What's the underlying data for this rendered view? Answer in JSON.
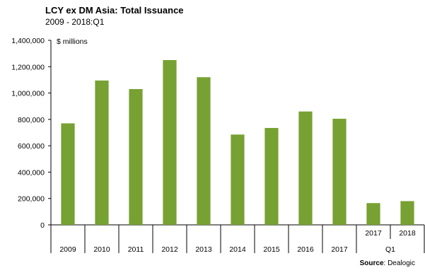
{
  "chart_data": {
    "type": "bar",
    "title": "LCY ex DM Asia:  Total Issuance",
    "subtitle": "2009 - 2018:Q1",
    "unit_label": "$ millions",
    "categories": [
      "2009",
      "2010",
      "2011",
      "2012",
      "2013",
      "2014",
      "2015",
      "2016",
      "2017",
      "2017",
      "2018"
    ],
    "group_labels": [
      {
        "label": "Q1",
        "categories": [
          "2017",
          "2018"
        ]
      }
    ],
    "values": [
      770000,
      1095000,
      1030000,
      1250000,
      1120000,
      685000,
      735000,
      860000,
      805000,
      165000,
      180000
    ],
    "ylim": [
      0,
      1400000
    ],
    "yticks": [
      0,
      200000,
      400000,
      600000,
      800000,
      1000000,
      1200000,
      1400000
    ],
    "ytick_labels": [
      "0",
      "200,000",
      "400,000",
      "600,000",
      "800,000",
      "1,000,000",
      "1,200,000",
      "1,400,000"
    ],
    "bar_color": "#77a132",
    "grid": false,
    "legend": "none"
  },
  "source": {
    "label": "Source",
    "text": ": Dealogic"
  }
}
